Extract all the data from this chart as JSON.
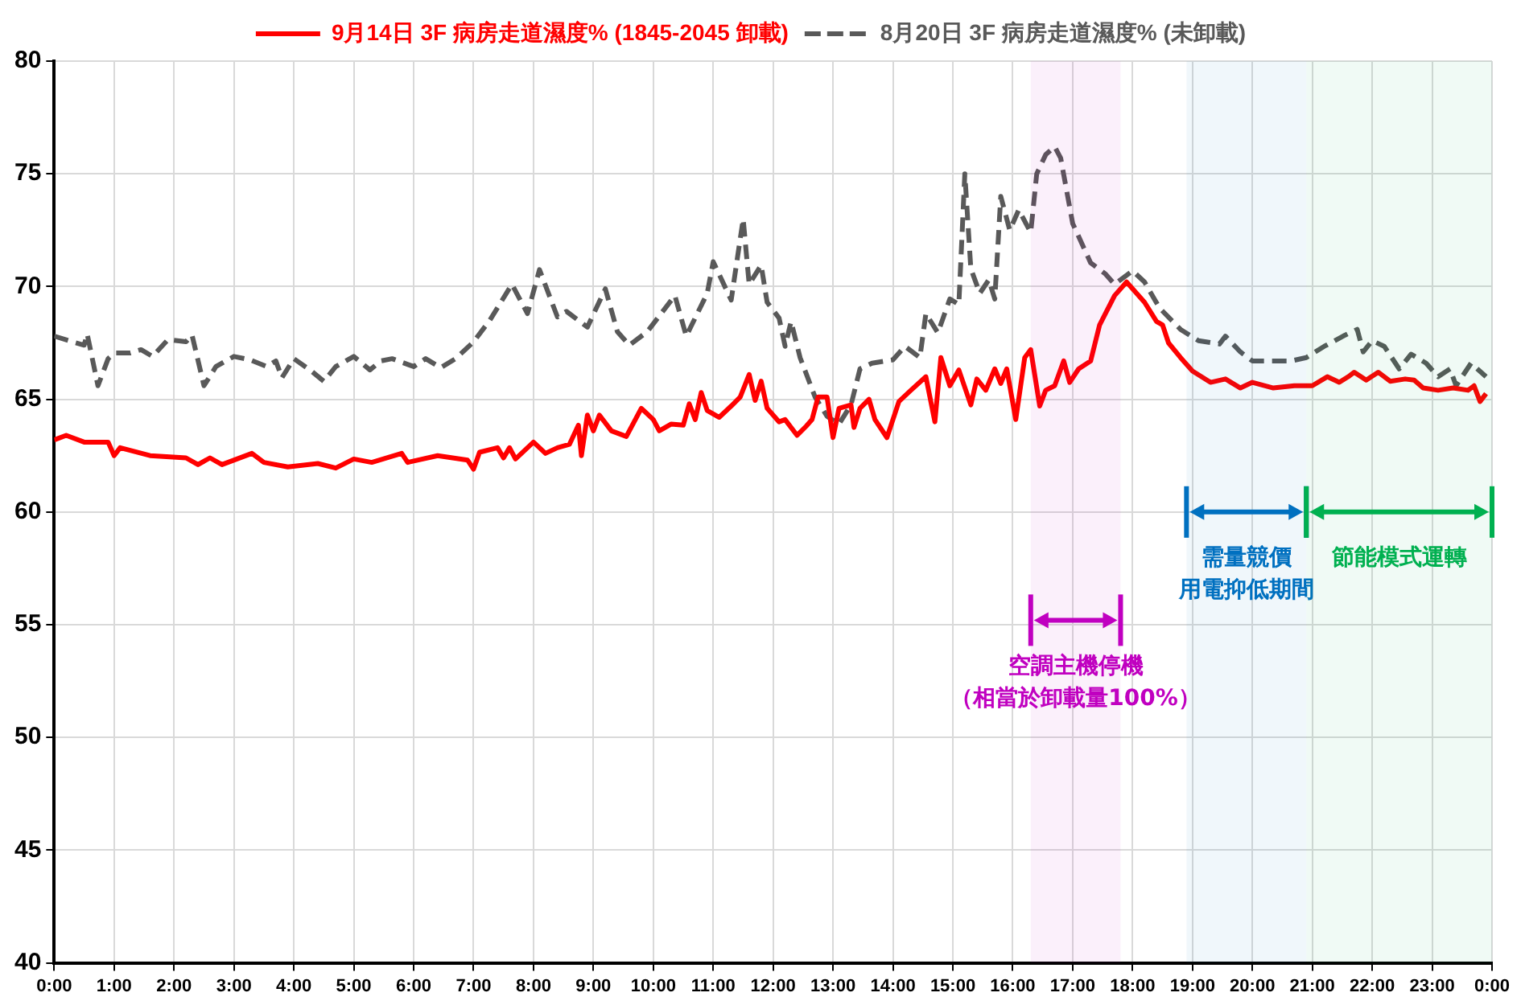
{
  "chart_data": {
    "type": "line",
    "ylim": [
      40,
      80
    ],
    "yticks": [
      40,
      45,
      50,
      55,
      60,
      65,
      70,
      75,
      80
    ],
    "xlim": [
      0,
      24
    ],
    "xticks": [
      {
        "value": 0,
        "label": "0:00"
      },
      {
        "value": 1,
        "label": "1:00"
      },
      {
        "value": 2,
        "label": "2:00"
      },
      {
        "value": 3,
        "label": "3:00"
      },
      {
        "value": 4,
        "label": "4:00"
      },
      {
        "value": 5,
        "label": "5:00"
      },
      {
        "value": 6,
        "label": "6:00"
      },
      {
        "value": 7,
        "label": "7:00"
      },
      {
        "value": 8,
        "label": "8:00"
      },
      {
        "value": 9,
        "label": "9:00"
      },
      {
        "value": 10,
        "label": "10:00"
      },
      {
        "value": 11,
        "label": "11:00"
      },
      {
        "value": 12,
        "label": "12:00"
      },
      {
        "value": 13,
        "label": "13:00"
      },
      {
        "value": 14,
        "label": "14:00"
      },
      {
        "value": 15,
        "label": "15:00"
      },
      {
        "value": 16,
        "label": "16:00"
      },
      {
        "value": 17,
        "label": "17:00"
      },
      {
        "value": 18,
        "label": "18:00"
      },
      {
        "value": 19,
        "label": "19:00"
      },
      {
        "value": 20,
        "label": "20:00"
      },
      {
        "value": 21,
        "label": "21:00"
      },
      {
        "value": 22,
        "label": "22:00"
      },
      {
        "value": 23,
        "label": "23:00"
      },
      {
        "value": 24,
        "label": "0:00"
      }
    ],
    "grid": true,
    "legend": "top",
    "marker": "none",
    "series": [
      {
        "name": "9月14日 3F 病房走道濕度% (1845-2045 卸載)",
        "color": "#ff0000",
        "line_style": "solid",
        "x": [
          0,
          0.2,
          0.5,
          0.9,
          1.0,
          1.1,
          1.6,
          2.2,
          2.4,
          2.6,
          2.8,
          3.3,
          3.5,
          3.9,
          4.4,
          4.7,
          5.0,
          5.3,
          5.8,
          5.9,
          6.4,
          6.9,
          7.0,
          7.1,
          7.4,
          7.5,
          7.6,
          7.7,
          8.0,
          8.2,
          8.4,
          8.6,
          8.75,
          8.8,
          8.9,
          9.0,
          9.1,
          9.3,
          9.55,
          9.8,
          10.0,
          10.1,
          10.3,
          10.5,
          10.6,
          10.7,
          10.8,
          10.9,
          11.1,
          11.3,
          11.45,
          11.6,
          11.7,
          11.8,
          11.9,
          12.1,
          12.2,
          12.4,
          12.55,
          12.65,
          12.75,
          12.9,
          13.0,
          13.1,
          13.3,
          13.35,
          13.45,
          13.6,
          13.7,
          13.9,
          14.1,
          14.3,
          14.55,
          14.7,
          14.8,
          14.95,
          15.1,
          15.3,
          15.4,
          15.55,
          15.7,
          15.8,
          15.9,
          16.05,
          16.2,
          16.3,
          16.45,
          16.55,
          16.7,
          16.85,
          16.95,
          17.1,
          17.3,
          17.45,
          17.7,
          17.9,
          18.2,
          18.4,
          18.5,
          18.6,
          18.8,
          19.0,
          19.3,
          19.55,
          19.8,
          20.0,
          20.35,
          20.7,
          21.0,
          21.25,
          21.45,
          21.6,
          21.7,
          21.9,
          22.1,
          22.3,
          22.55,
          22.7,
          22.85,
          23.1,
          23.35,
          23.6,
          23.7,
          23.8,
          23.9
        ],
        "values": [
          63.2,
          63.4,
          63.1,
          63.1,
          62.5,
          62.85,
          62.5,
          62.4,
          62.1,
          62.4,
          62.1,
          62.6,
          62.2,
          62.0,
          62.15,
          61.95,
          62.35,
          62.2,
          62.6,
          62.2,
          62.5,
          62.3,
          61.9,
          62.65,
          62.85,
          62.4,
          62.85,
          62.35,
          63.1,
          62.6,
          62.85,
          63.0,
          63.85,
          62.5,
          64.3,
          63.6,
          64.3,
          63.6,
          63.35,
          64.6,
          64.1,
          63.6,
          63.9,
          63.85,
          64.8,
          64.1,
          65.3,
          64.5,
          64.2,
          64.7,
          65.1,
          66.1,
          64.95,
          65.8,
          64.6,
          64.0,
          64.1,
          63.4,
          63.8,
          64.1,
          65.1,
          65.1,
          63.3,
          64.6,
          64.75,
          63.75,
          64.6,
          65.0,
          64.1,
          63.3,
          64.9,
          65.4,
          66.0,
          64.0,
          66.85,
          65.6,
          66.3,
          64.75,
          65.9,
          65.4,
          66.35,
          65.7,
          66.35,
          64.1,
          66.85,
          67.2,
          64.7,
          65.4,
          65.6,
          66.7,
          65.75,
          66.35,
          66.7,
          68.3,
          69.6,
          70.2,
          69.3,
          68.45,
          68.3,
          67.5,
          66.85,
          66.25,
          65.75,
          65.9,
          65.5,
          65.75,
          65.5,
          65.6,
          65.6,
          66.0,
          65.75,
          66.0,
          66.2,
          65.85,
          66.2,
          65.8,
          65.9,
          65.85,
          65.5,
          65.4,
          65.5,
          65.4,
          65.6,
          64.9,
          65.25
        ]
      },
      {
        "name": "8月20日 3F 病房走道濕度% (未卸載)",
        "color": "#595959",
        "line_style": "dashed",
        "x": [
          0,
          0.3,
          0.5,
          0.55,
          0.73,
          0.9,
          1.0,
          1.27,
          1.45,
          1.64,
          1.9,
          2.2,
          2.3,
          2.5,
          2.7,
          3.0,
          3.27,
          3.55,
          3.7,
          3.8,
          4.0,
          4.27,
          4.5,
          4.7,
          5.0,
          5.27,
          5.45,
          5.64,
          6.0,
          6.2,
          6.45,
          6.7,
          7.0,
          7.27,
          7.64,
          7.9,
          8.1,
          8.4,
          8.55,
          8.9,
          9.2,
          9.4,
          9.6,
          9.9,
          10.36,
          10.55,
          10.9,
          11.0,
          11.3,
          11.5,
          11.6,
          11.8,
          11.9,
          12.1,
          12.2,
          12.3,
          12.45,
          12.7,
          12.9,
          13.1,
          13.3,
          13.45,
          13.65,
          14.0,
          14.2,
          14.45,
          14.55,
          14.75,
          14.95,
          15.1,
          15.2,
          15.3,
          15.45,
          15.6,
          15.7,
          15.8,
          15.95,
          16.1,
          16.3,
          16.4,
          16.55,
          16.7,
          16.8,
          17.0,
          17.3,
          17.55,
          17.7,
          18.0,
          18.2,
          18.45,
          18.8,
          19.1,
          19.45,
          19.55,
          19.8,
          20.0,
          20.35,
          20.65,
          20.9,
          21.2,
          21.55,
          21.75,
          21.85,
          22.0,
          22.2,
          22.45,
          22.65,
          22.9,
          23.1,
          23.3,
          23.4,
          23.65,
          23.9
        ],
        "values": [
          67.8,
          67.55,
          67.4,
          67.9,
          65.6,
          66.8,
          67.05,
          67.05,
          67.2,
          66.9,
          67.65,
          67.55,
          67.85,
          65.6,
          66.45,
          66.9,
          66.75,
          66.45,
          66.7,
          65.95,
          66.8,
          66.3,
          65.8,
          66.45,
          66.9,
          66.3,
          66.7,
          66.8,
          66.45,
          66.8,
          66.4,
          66.8,
          67.55,
          68.5,
          70.1,
          68.8,
          70.75,
          68.65,
          68.9,
          68.2,
          69.9,
          68.0,
          67.4,
          68.0,
          69.6,
          67.8,
          69.7,
          71.1,
          69.4,
          73.0,
          70.1,
          70.95,
          69.3,
          68.6,
          67.35,
          68.45,
          66.85,
          65.1,
          64.25,
          63.9,
          64.75,
          66.35,
          66.6,
          66.75,
          67.35,
          66.85,
          68.8,
          67.95,
          69.45,
          69.2,
          75.0,
          70.8,
          69.7,
          70.3,
          69.45,
          74.0,
          72.5,
          73.4,
          72.4,
          75.0,
          75.85,
          76.2,
          75.7,
          72.8,
          71.05,
          70.55,
          70.1,
          70.7,
          70.2,
          69.05,
          68.1,
          67.6,
          67.45,
          67.8,
          67.1,
          66.7,
          66.7,
          66.7,
          66.85,
          67.35,
          67.85,
          68.1,
          67.1,
          67.6,
          67.35,
          66.35,
          67.0,
          66.6,
          66.0,
          66.35,
          65.6,
          66.6,
          66.0
        ]
      }
    ],
    "bands": [
      {
        "axis": "x",
        "from": 16.3,
        "to": 17.8,
        "label": "空調主機停機（相當於卸載量100%）",
        "color": "#c000c0"
      },
      {
        "axis": "x",
        "from": 18.9,
        "to": 20.9,
        "label": "需量競價用電抑低期間",
        "color": "#0070c0"
      },
      {
        "axis": "x",
        "from": 20.9,
        "to": 24,
        "label": "節能模式運轉",
        "color": "#00b050"
      }
    ]
  }
}
